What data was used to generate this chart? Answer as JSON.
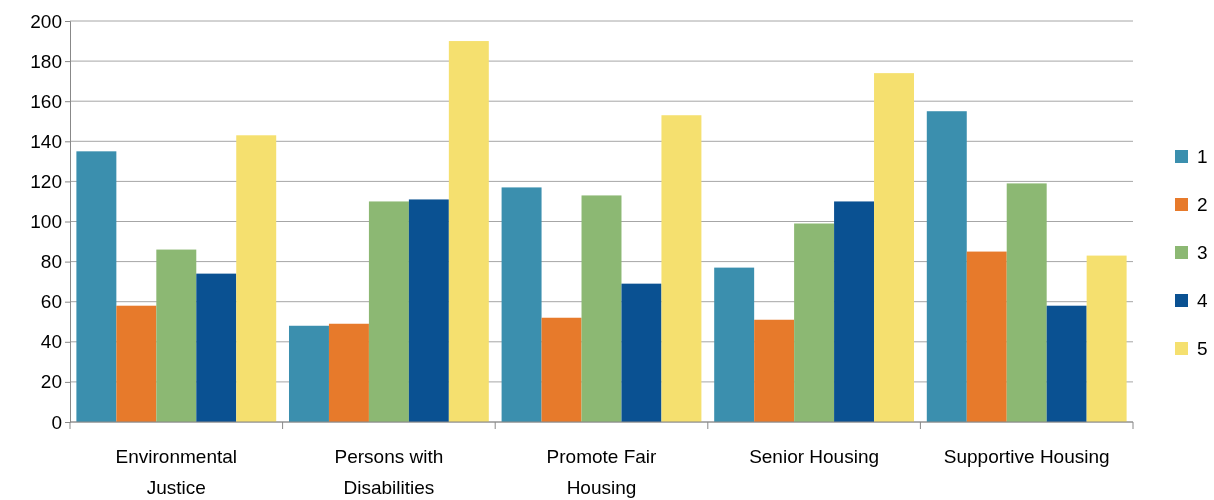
{
  "chart_data": {
    "type": "bar",
    "categories": [
      "Environmental Justice",
      "Persons with Disabilities",
      "Promote Fair Housing",
      "Senior Housing",
      "Supportive Housing"
    ],
    "series": [
      {
        "name": "1",
        "color": "#3b8fae",
        "values": [
          135,
          48,
          117,
          77,
          155
        ]
      },
      {
        "name": "2",
        "color": "#e77a2b",
        "values": [
          58,
          49,
          52,
          51,
          85
        ]
      },
      {
        "name": "3",
        "color": "#8cb873",
        "values": [
          86,
          110,
          113,
          99,
          119
        ]
      },
      {
        "name": "4",
        "color": "#0a5192",
        "values": [
          74,
          111,
          69,
          110,
          58
        ]
      },
      {
        "name": "5",
        "color": "#f5e06f",
        "values": [
          143,
          190,
          153,
          174,
          83
        ]
      }
    ],
    "ylim": [
      0,
      200
    ],
    "yticks": [
      0,
      20,
      40,
      60,
      80,
      100,
      120,
      140,
      160,
      180,
      200
    ],
    "grid": "y",
    "legend": "right"
  }
}
